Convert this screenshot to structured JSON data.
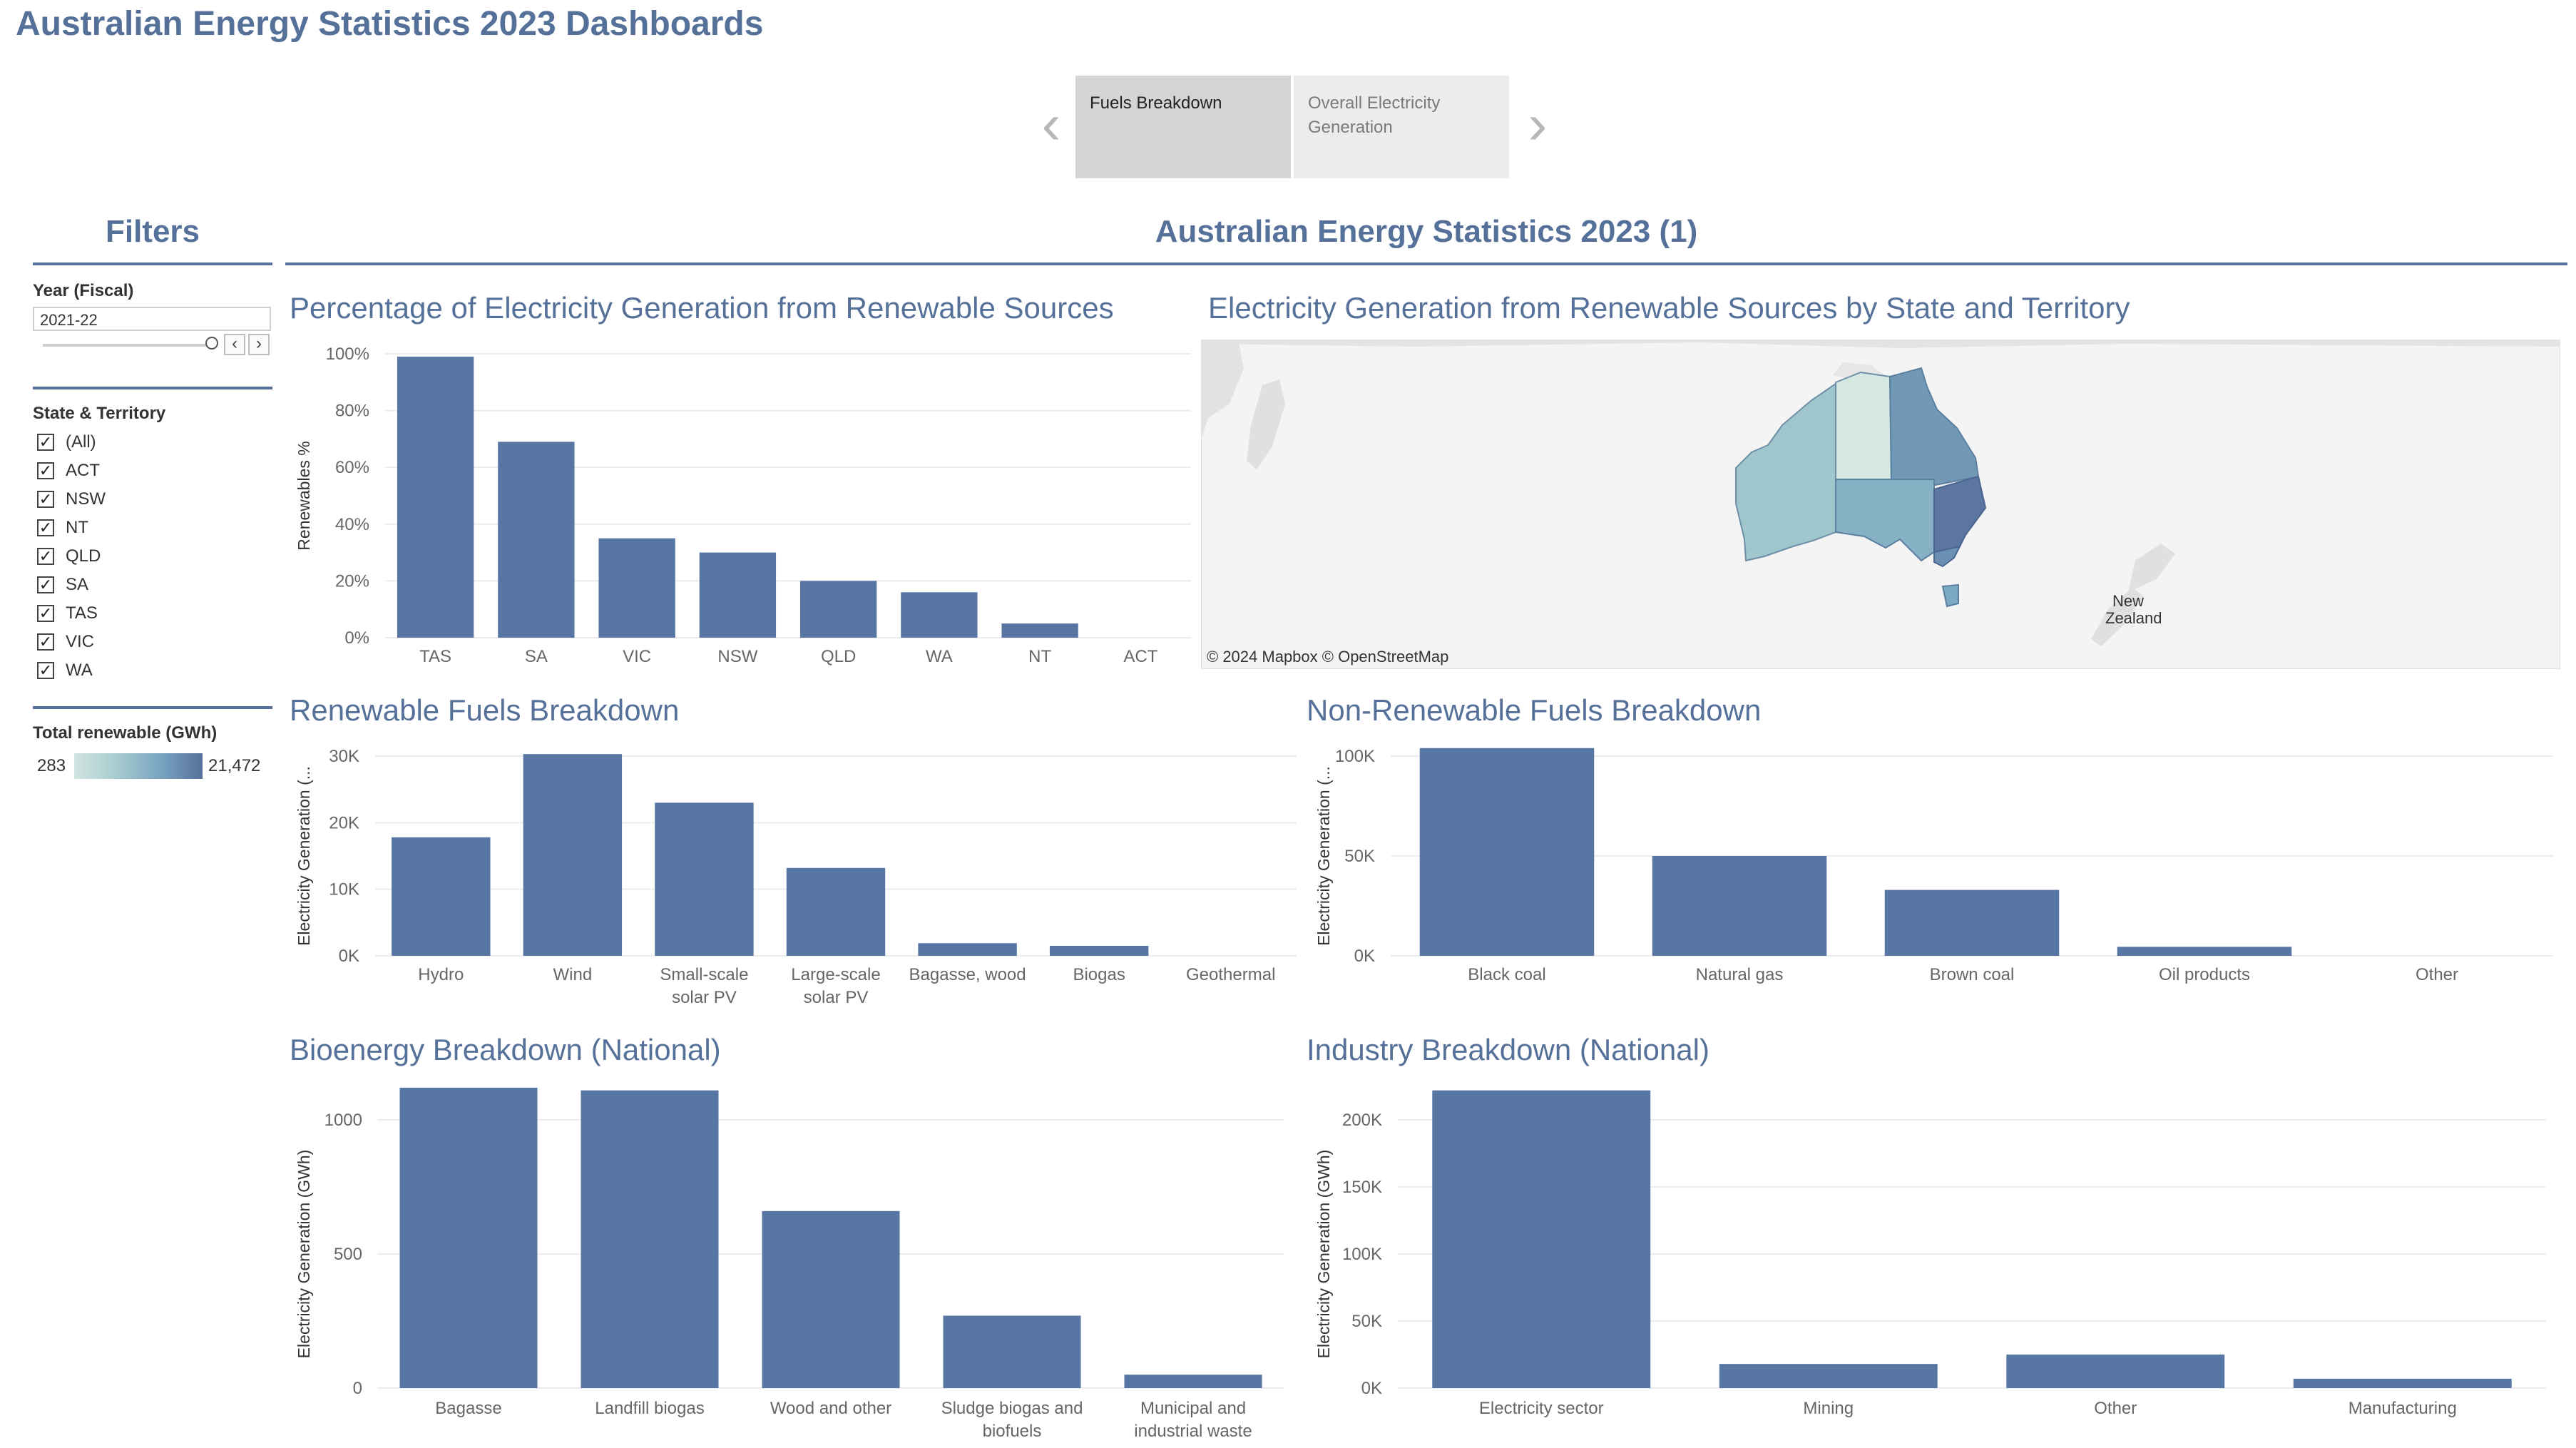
{
  "header": {
    "title": "Australian Energy Statistics 2023 Dashboards"
  },
  "story": {
    "points": [
      {
        "label": "Fuels Breakdown"
      },
      {
        "label": "Overall Electricity Generation"
      }
    ]
  },
  "filters": {
    "title": "Filters",
    "year": {
      "label": "Year (Fiscal)",
      "value": "2021-22"
    },
    "state": {
      "label": "State & Territory",
      "options": [
        "(All)",
        "ACT",
        "NSW",
        "NT",
        "QLD",
        "SA",
        "TAS",
        "VIC",
        "WA"
      ]
    },
    "legend": {
      "label": "Total renewable (GWh)",
      "min": "283",
      "max": "21,472"
    }
  },
  "dashboard": {
    "title": "Australian Energy Statistics 2023 (1)"
  },
  "map": {
    "title": "Electricity Generation from Renewable Sources by State and Territory",
    "attribution": "© 2024 Mapbox  © OpenStreetMap",
    "labels": [
      "New",
      "Zealand"
    ]
  },
  "colors": {
    "bar": "#5876a4",
    "title": "#557199",
    "legend_low": "#d0e5e1",
    "legend_high": "#557199"
  },
  "chart_data": [
    {
      "id": "pct",
      "type": "bar",
      "title": "Percentage of Electricity Generation from Renewable Sources",
      "ylabel": "Renewables %",
      "categories": [
        "TAS",
        "SA",
        "VIC",
        "NSW",
        "QLD",
        "WA",
        "NT",
        "ACT"
      ],
      "values": [
        99,
        69,
        35,
        30,
        20,
        16,
        5,
        0
      ],
      "ylim": [
        0,
        100
      ],
      "yticks": [
        0,
        20,
        40,
        60,
        80,
        100
      ],
      "yticklabels": [
        "0%",
        "20%",
        "40%",
        "60%",
        "80%",
        "100%"
      ]
    },
    {
      "id": "renew",
      "type": "bar",
      "title": "Renewable Fuels Breakdown",
      "ylabel": "Electricity Generation (...",
      "categories": [
        [
          "Hydro"
        ],
        [
          "Wind"
        ],
        [
          "Small-scale",
          "solar PV"
        ],
        [
          "Large-scale",
          "solar PV"
        ],
        [
          "Bagasse, wood"
        ],
        [
          "Biogas"
        ],
        [
          "Geothermal"
        ]
      ],
      "values": [
        17800,
        30300,
        23000,
        13200,
        1900,
        1500,
        0
      ],
      "ylim": [
        0,
        30000
      ],
      "yticks": [
        0,
        10000,
        20000,
        30000
      ],
      "yticklabels": [
        "0K",
        "10K",
        "20K",
        "30K"
      ]
    },
    {
      "id": "nonrenew",
      "type": "bar",
      "title": "Non-Renewable Fuels Breakdown",
      "ylabel": "Electricity Generation (...",
      "categories": [
        [
          "Black coal"
        ],
        [
          "Natural gas"
        ],
        [
          "Brown coal"
        ],
        [
          "Oil products"
        ],
        [
          "Other"
        ]
      ],
      "values": [
        104000,
        50000,
        33000,
        4500,
        0
      ],
      "ylim": [
        0,
        100000
      ],
      "yticks": [
        0,
        50000,
        100000
      ],
      "yticklabels": [
        "0K",
        "50K",
        "100K"
      ]
    },
    {
      "id": "bio",
      "type": "bar",
      "title": "Bioenergy Breakdown (National)",
      "ylabel": "Electricity Generation (GWh)",
      "categories": [
        [
          "Bagasse"
        ],
        [
          "Landfill biogas"
        ],
        [
          "Wood and other"
        ],
        [
          "Sludge biogas and",
          "biofuels"
        ],
        [
          "Municipal and",
          "industrial waste"
        ]
      ],
      "values": [
        1130,
        1110,
        660,
        270,
        50
      ],
      "ylim": [
        0,
        1000
      ],
      "yticks": [
        0,
        500,
        1000
      ],
      "yticklabels": [
        "0",
        "500",
        "1000"
      ]
    },
    {
      "id": "industry",
      "type": "bar",
      "title": "Industry Breakdown (National)",
      "ylabel": "Electricity Generation (GWh)",
      "categories": [
        [
          "Electricity sector"
        ],
        [
          "Mining"
        ],
        [
          "Other"
        ],
        [
          "Manufacturing"
        ]
      ],
      "values": [
        222000,
        18000,
        25000,
        7000
      ],
      "ylim": [
        0,
        200000
      ],
      "yticks": [
        0,
        50000,
        100000,
        150000,
        200000
      ],
      "yticklabels": [
        "0K",
        "50K",
        "100K",
        "150K",
        "200K"
      ]
    }
  ]
}
